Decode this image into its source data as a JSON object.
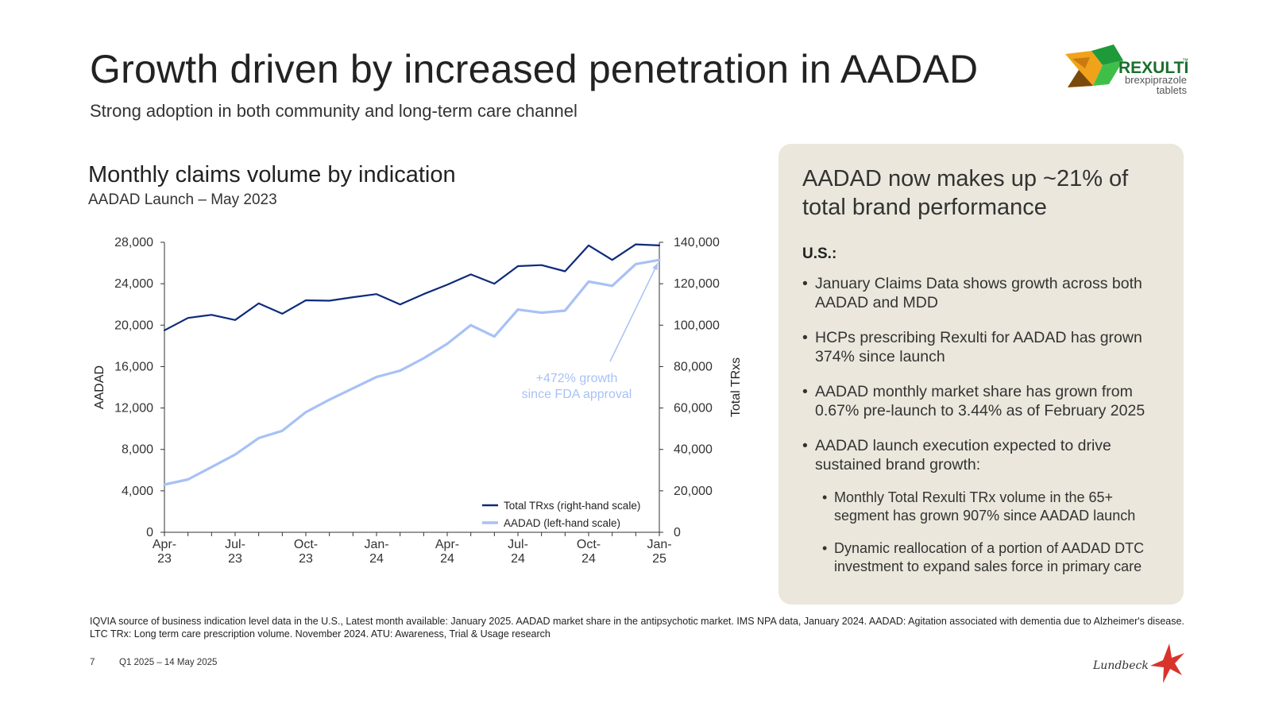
{
  "header": {
    "title": "Growth driven by increased penetration in AADAD",
    "subtitle": "Strong adoption in both community and long-term care channel"
  },
  "brand_logo": {
    "name": "REXULTI",
    "tm": "™",
    "line1": "brexpiprazole",
    "line2": "tablets"
  },
  "chart_heading": {
    "title": "Monthly claims volume by indication",
    "subtitle": "AADAD Launch – May 2023"
  },
  "chart_data": {
    "type": "line",
    "x": [
      "Apr-23",
      "May-23",
      "Jun-23",
      "Jul-23",
      "Aug-23",
      "Sep-23",
      "Oct-23",
      "Nov-23",
      "Dec-23",
      "Jan-24",
      "Feb-24",
      "Mar-24",
      "Apr-24",
      "May-24",
      "Jun-24",
      "Jul-24",
      "Aug-24",
      "Sep-24",
      "Oct-24",
      "Nov-24",
      "Dec-24",
      "Jan-25"
    ],
    "x_tick_labels": [
      {
        "index": 0,
        "line1": "Apr-",
        "line2": "23"
      },
      {
        "index": 3,
        "line1": "Jul-",
        "line2": "23"
      },
      {
        "index": 6,
        "line1": "Oct-",
        "line2": "23"
      },
      {
        "index": 9,
        "line1": "Jan-",
        "line2": "24"
      },
      {
        "index": 12,
        "line1": "Apr-",
        "line2": "24"
      },
      {
        "index": 15,
        "line1": "Jul-",
        "line2": "24"
      },
      {
        "index": 18,
        "line1": "Oct-",
        "line2": "24"
      },
      {
        "index": 21,
        "line1": "Jan-",
        "line2": "25"
      }
    ],
    "series": [
      {
        "name": "Total TRxs (right-hand scale)",
        "axis": "right",
        "color": "#0d2b7a",
        "values": [
          97500,
          103500,
          105000,
          102500,
          110500,
          105500,
          112000,
          111800,
          113500,
          115000,
          110000,
          115000,
          119500,
          124500,
          120000,
          128500,
          129000,
          126000,
          138500,
          131500,
          139000,
          138500
        ]
      },
      {
        "name": "AADAD (left-hand scale)",
        "axis": "left",
        "color": "#a8c1f5",
        "values": [
          4600,
          5100,
          6300,
          7500,
          9100,
          9800,
          11600,
          12800,
          13900,
          15000,
          15600,
          16800,
          18200,
          20000,
          18900,
          21500,
          21200,
          21400,
          24200,
          23800,
          25900,
          26300
        ]
      }
    ],
    "y_left": {
      "label": "AADAD",
      "min": 0,
      "max": 28000,
      "ticks": [
        0,
        4000,
        8000,
        12000,
        16000,
        20000,
        24000,
        28000
      ],
      "tick_labels": [
        "0",
        "4,000",
        "8,000",
        "12,000",
        "16,000",
        "20,000",
        "24,000",
        "28,000"
      ]
    },
    "y_right": {
      "label": "Total TRxs",
      "min": 0,
      "max": 140000,
      "ticks": [
        0,
        20000,
        40000,
        60000,
        80000,
        100000,
        120000,
        140000
      ],
      "tick_labels": [
        "0",
        "20,000",
        "40,000",
        "60,000",
        "80,000",
        "100,000",
        "120,000",
        "140,000"
      ]
    },
    "annotation": {
      "line1": "+472% growth",
      "line2": "since FDA approval",
      "color": "#a8c1f5"
    },
    "legend_position": "bottom-right"
  },
  "panel": {
    "heading": "AADAD now makes up ~21% of total brand performance",
    "region": "U.S.:",
    "bullets": [
      "January Claims Data shows growth across both AADAD and MDD",
      "HCPs prescribing Rexulti for AADAD has grown 374% since launch",
      "AADAD monthly market share has grown from 0.67% pre-launch to 3.44% as of February 2025",
      "AADAD launch execution expected to drive sustained brand growth:"
    ],
    "sub_bullets": [
      "Monthly Total Rexulti TRx volume in the 65+ segment has grown 907% since AADAD launch",
      "Dynamic reallocation of a portion of AADAD DTC investment to expand sales force in primary care"
    ],
    "bullet_char": "•"
  },
  "footer": {
    "note": "IQVIA source of business indication level data in the U.S., Latest month available: January 2025. AADAD market share in the antipsychotic market. IMS NPA data, January 2024. AADAD: Agitation associated with dementia due to Alzheimer's disease. LTC TRx: Long term care prescription volume. November 2024. ATU: Awareness, Trial & Usage research",
    "page": "7",
    "date": "Q1 2025 – 14 May 2025"
  },
  "company_logo": {
    "name": "Lundbeck"
  },
  "colors": {
    "panel_bg": "#ebe7dc",
    "navy": "#0d2b7a",
    "light_blue": "#a8c1f5",
    "star_red": "#d9342b"
  }
}
